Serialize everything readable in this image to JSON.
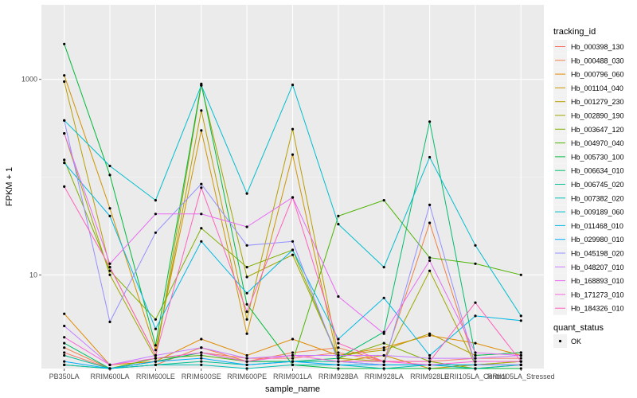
{
  "chart_data": {
    "type": "line",
    "xlabel": "sample_name",
    "ylabel": "FPKM + 1",
    "y_scale": "log10",
    "ylim": [
      1.1,
      5800
    ],
    "y_ticks": [
      10,
      1000
    ],
    "y_tick_labels": [
      "10",
      "1000"
    ],
    "grid": true,
    "categories": [
      "PB350LA",
      "RRIM600LA",
      "RRIM600LE",
      "RRIM600SE",
      "RRIM600PE",
      "RRIM901LA",
      "RRIM928BA",
      "RRIM928LA",
      "RRIM928LE",
      "RRII105LA_Control",
      "RRII105LA_Stressed"
    ],
    "legend": {
      "title": "tracking_id",
      "placement": "right"
    },
    "quant_legend": {
      "title": "quant_status",
      "label": "OK"
    },
    "series": [
      {
        "name": "Hb_000398_130",
        "color": "#F8766D",
        "values": [
          1.6,
          1.1,
          1.3,
          1.6,
          1.4,
          1.4,
          1.6,
          1.3,
          1.3,
          1.4,
          1.4
        ]
      },
      {
        "name": "Hb_000488_030",
        "color": "#EF7F48",
        "values": [
          1.8,
          1.1,
          1.2,
          1.8,
          1.3,
          1.6,
          1.8,
          1.3,
          34,
          1.2,
          1.2
        ]
      },
      {
        "name": "Hb_000796_060",
        "color": "#E18A00",
        "values": [
          4.0,
          1.2,
          1.3,
          2.2,
          1.5,
          2.2,
          1.5,
          1.8,
          2.4,
          2.0,
          1.5
        ]
      },
      {
        "name": "Hb_001104_040",
        "color": "#CF9400",
        "values": [
          1100,
          48,
          1.7,
          300,
          2.5,
          170,
          1.3,
          1.5,
          1.1,
          1.2,
          1.3
        ]
      },
      {
        "name": "Hb_001279_230",
        "color": "#B99E00",
        "values": [
          950,
          12,
          1.5,
          480,
          3.5,
          310,
          1.5,
          1.7,
          2.5,
          1.5,
          1.6
        ]
      },
      {
        "name": "Hb_002890_190",
        "color": "#9FA600",
        "values": [
          280,
          10,
          1.4,
          870,
          9.5,
          16,
          1.4,
          1.3,
          11,
          1.2,
          1.3
        ]
      },
      {
        "name": "Hb_003647_120",
        "color": "#7EAE00",
        "values": [
          150,
          11,
          3.5,
          30,
          12,
          18,
          1.4,
          2.0,
          1.3,
          1.1,
          1.2
        ]
      },
      {
        "name": "Hb_004970_040",
        "color": "#4CB400",
        "values": [
          1.2,
          1.1,
          1.4,
          1.5,
          1.3,
          1.3,
          40,
          58,
          15,
          13,
          10
        ]
      },
      {
        "name": "Hb_005730_100",
        "color": "#00B93B",
        "values": [
          2300,
          105,
          1.9,
          900,
          5.0,
          1.2,
          1.1,
          1.1,
          1.1,
          1.1,
          1.1
        ]
      },
      {
        "name": "Hb_006634_010",
        "color": "#00BC6B",
        "values": [
          2.0,
          1.1,
          1.3,
          1.6,
          1.3,
          1.3,
          1.4,
          2.6,
          370,
          1.5,
          1.6
        ]
      },
      {
        "name": "Hb_006745_020",
        "color": "#00BE91",
        "values": [
          1.5,
          1.1,
          1.2,
          1.3,
          1.2,
          1.3,
          1.3,
          1.2,
          1.2,
          1.2,
          1.2
        ]
      },
      {
        "name": "Hb_007382_020",
        "color": "#00BFB2",
        "values": [
          1.2,
          1.1,
          1.2,
          1.2,
          1.1,
          1.2,
          1.2,
          1.1,
          1.2,
          1.1,
          1.2
        ]
      },
      {
        "name": "Hb_009189_060",
        "color": "#00BDCE",
        "values": [
          380,
          130,
          58,
          870,
          68,
          880,
          33,
          12,
          160,
          20,
          3.8
        ]
      },
      {
        "name": "Hb_011468_010",
        "color": "#00B8E5",
        "values": [
          140,
          40,
          2.8,
          22,
          6.5,
          18,
          2.2,
          5.8,
          1.5,
          3.8,
          3.4
        ]
      },
      {
        "name": "Hb_029980_010",
        "color": "#00ACFC",
        "values": [
          1.3,
          1.1,
          1.3,
          1.4,
          1.2,
          1.3,
          1.2,
          1.2,
          1.2,
          1.2,
          1.2
        ]
      },
      {
        "name": "Hb_045198_020",
        "color": "#9590FF",
        "values": [
          380,
          3.3,
          27,
          85,
          20,
          22,
          1.3,
          1.2,
          52,
          1.2,
          1.2
        ]
      },
      {
        "name": "Hb_048207_010",
        "color": "#C77CFF",
        "values": [
          3.0,
          1.2,
          1.5,
          1.8,
          1.4,
          1.5,
          1.5,
          1.5,
          1.4,
          1.4,
          1.5
        ]
      },
      {
        "name": "Hb_168893_010",
        "color": "#E76BF3",
        "values": [
          280,
          13,
          42,
          42,
          31,
          62,
          6.0,
          2.5,
          14,
          1.6,
          1.5
        ]
      },
      {
        "name": "Hb_171273_010",
        "color": "#FA62DB",
        "values": [
          2.3,
          1.2,
          1.4,
          1.6,
          1.3,
          1.5,
          1.3,
          1.3,
          1.2,
          1.3,
          1.3
        ]
      },
      {
        "name": "Hb_184326_010",
        "color": "#FF62BC",
        "values": [
          80,
          12,
          1.5,
          78,
          4.2,
          62,
          2.0,
          1.3,
          1.3,
          5.2,
          1.3
        ]
      }
    ]
  }
}
